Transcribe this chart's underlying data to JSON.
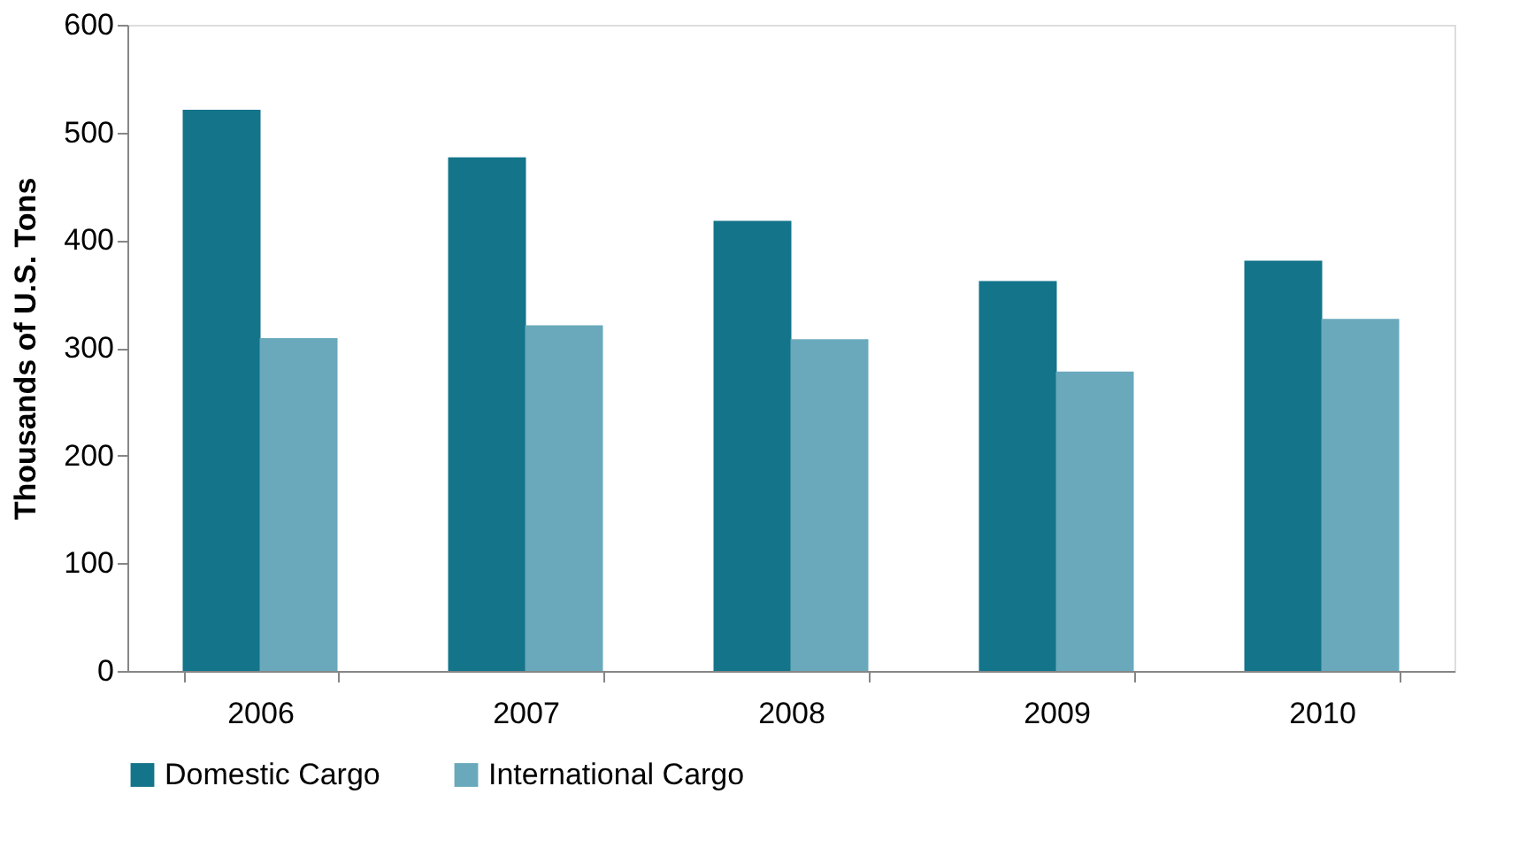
{
  "chart_data": {
    "type": "bar",
    "ylabel": "Thousands of U.S. Tons",
    "categories": [
      "2006",
      "2007",
      "2008",
      "2009",
      "2010"
    ],
    "series": [
      {
        "name": "Domestic Cargo",
        "color": "#13748a",
        "values": [
          521,
          477,
          418,
          362,
          381
        ]
      },
      {
        "name": "International Cargo",
        "color": "#69a9bb",
        "values": [
          309,
          321,
          308,
          278,
          327
        ]
      }
    ],
    "ylim": [
      0,
      600
    ],
    "yticks": [
      0,
      100,
      200,
      300,
      400,
      500,
      600
    ],
    "grid": false,
    "legend": "bottom"
  }
}
